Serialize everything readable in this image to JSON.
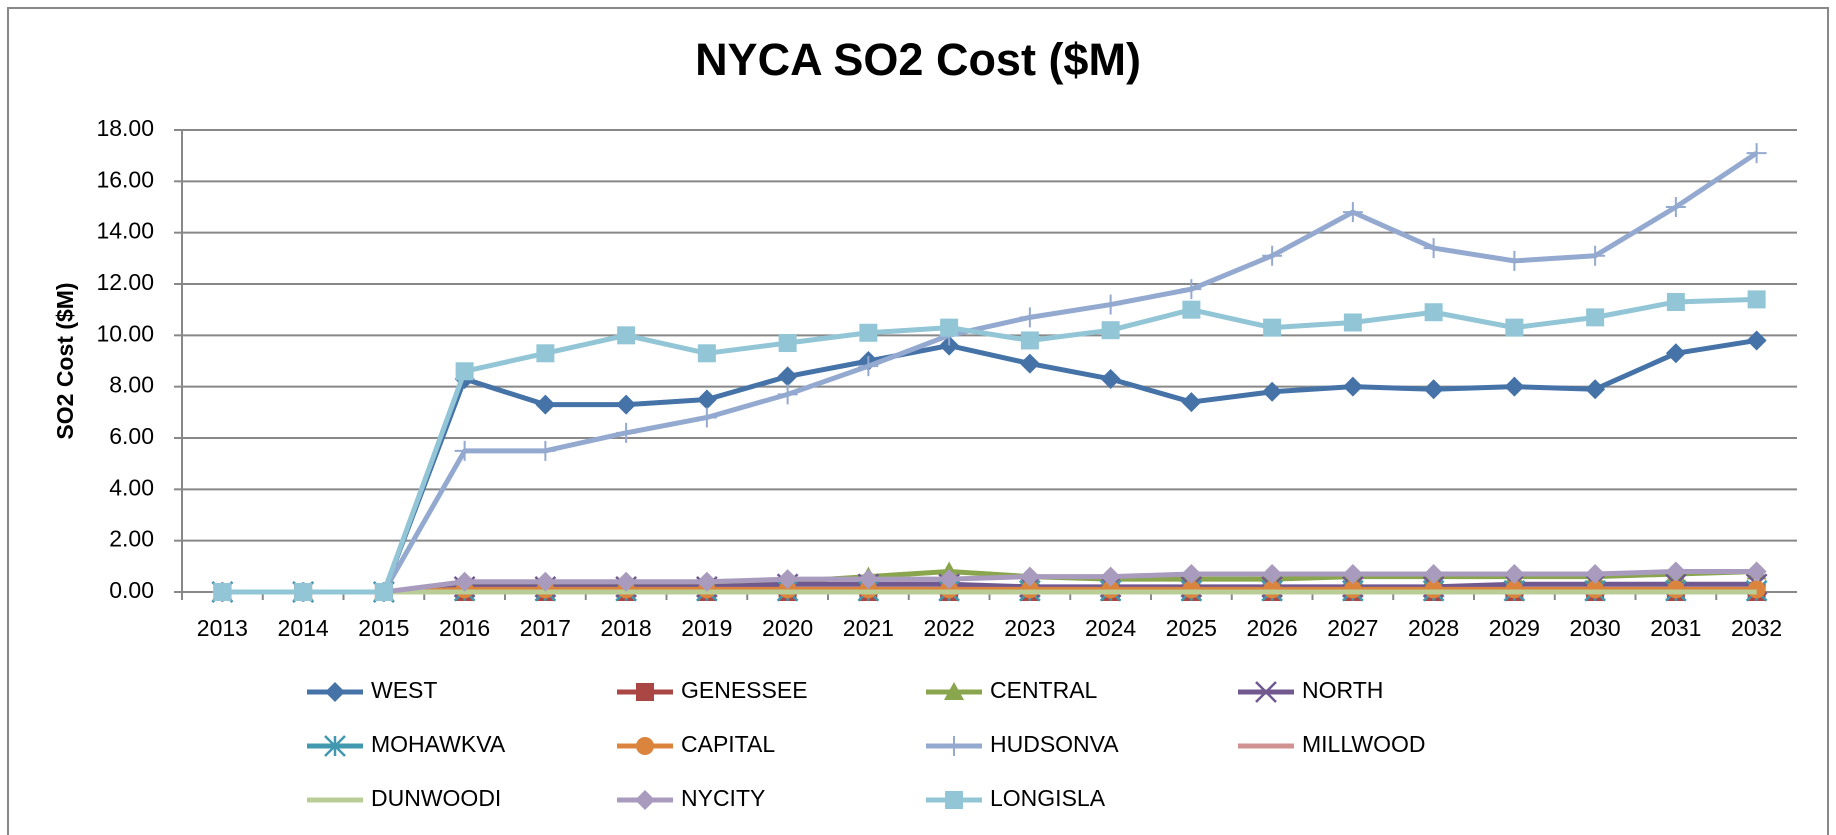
{
  "chart_data": {
    "type": "line",
    "title": "NYCA SO2 Cost ($M)",
    "y_label": "SO2 Cost ($M)",
    "categories": [
      "2013",
      "2014",
      "2015",
      "2016",
      "2017",
      "2018",
      "2019",
      "2020",
      "2021",
      "2022",
      "2023",
      "2024",
      "2025",
      "2026",
      "2027",
      "2028",
      "2029",
      "2030",
      "2031",
      "2032"
    ],
    "ylim": [
      0,
      18
    ],
    "yticks": [
      {
        "value": 0,
        "label": "0.00"
      },
      {
        "value": 2,
        "label": "2.00"
      },
      {
        "value": 4,
        "label": "4.00"
      },
      {
        "value": 6,
        "label": "6.00"
      },
      {
        "value": 8,
        "label": "8.00"
      },
      {
        "value": 10,
        "label": "10.00"
      },
      {
        "value": 12,
        "label": "12.00"
      },
      {
        "value": 14,
        "label": "14.00"
      },
      {
        "value": 16,
        "label": "16.00"
      },
      {
        "value": 18,
        "label": "18.00"
      }
    ],
    "grid": true,
    "legend": "bottom",
    "series": [
      {
        "name": "WEST",
        "color": "#4572a7",
        "marker": "diamond",
        "values": [
          0,
          0,
          0,
          8.3,
          7.3,
          7.3,
          7.5,
          8.4,
          9.0,
          9.6,
          8.9,
          8.3,
          7.4,
          7.8,
          8.0,
          7.9,
          8.0,
          7.9,
          9.3,
          9.8
        ]
      },
      {
        "name": "GENESSEE",
        "color": "#aa4643",
        "marker": "square",
        "values": [
          0,
          0,
          0,
          0,
          0,
          0,
          0,
          0,
          0,
          0,
          0,
          0,
          0,
          0,
          0,
          0,
          0,
          0,
          0,
          0
        ]
      },
      {
        "name": "CENTRAL",
        "color": "#89a54e",
        "marker": "triangle",
        "values": [
          0,
          0,
          0,
          0.3,
          0.3,
          0.3,
          0.3,
          0.4,
          0.6,
          0.8,
          0.6,
          0.5,
          0.5,
          0.5,
          0.6,
          0.6,
          0.6,
          0.6,
          0.7,
          0.8
        ]
      },
      {
        "name": "NORTH",
        "color": "#71588f",
        "marker": "x",
        "values": [
          0,
          0,
          0,
          0.2,
          0.2,
          0.2,
          0.2,
          0.3,
          0.3,
          0.3,
          0.2,
          0.2,
          0.2,
          0.2,
          0.2,
          0.2,
          0.3,
          0.3,
          0.3,
          0.3
        ]
      },
      {
        "name": "MOHAWKVA",
        "color": "#4198af",
        "marker": "asterisk",
        "values": [
          0,
          0,
          0,
          0.05,
          0.05,
          0.05,
          0.05,
          0.05,
          0.05,
          0.05,
          0.05,
          0.05,
          0.05,
          0.05,
          0.05,
          0.05,
          0.05,
          0.05,
          0.05,
          0.05
        ]
      },
      {
        "name": "CAPITAL",
        "color": "#db843d",
        "marker": "circle",
        "values": [
          0,
          0,
          0,
          0.1,
          0.1,
          0.1,
          0.1,
          0.1,
          0.1,
          0.1,
          0.1,
          0.1,
          0.1,
          0.1,
          0.1,
          0.1,
          0.1,
          0.1,
          0.1,
          0.1
        ]
      },
      {
        "name": "HUDSONVA",
        "color": "#93a9cf",
        "marker": "plus",
        "values": [
          0,
          0,
          0,
          5.5,
          5.5,
          6.2,
          6.8,
          7.7,
          8.8,
          10.0,
          10.7,
          11.2,
          11.8,
          13.1,
          14.8,
          13.4,
          12.9,
          13.1,
          15.0,
          17.1
        ]
      },
      {
        "name": "MILLWOOD",
        "color": "#d19392",
        "marker": "none",
        "values": [
          0,
          0,
          0,
          0,
          0,
          0,
          0,
          0,
          0,
          0,
          0,
          0,
          0,
          0,
          0,
          0,
          0,
          0,
          0,
          0
        ]
      },
      {
        "name": "DUNWOODI",
        "color": "#b9cd96",
        "marker": "none",
        "values": [
          0,
          0,
          0,
          0,
          0,
          0,
          0,
          0,
          0,
          0,
          0,
          0,
          0,
          0,
          0,
          0,
          0,
          0,
          0,
          0
        ]
      },
      {
        "name": "NYCITY",
        "color": "#a99bbd",
        "marker": "diamond",
        "values": [
          0,
          0,
          0,
          0.4,
          0.4,
          0.4,
          0.4,
          0.5,
          0.5,
          0.5,
          0.6,
          0.6,
          0.7,
          0.7,
          0.7,
          0.7,
          0.7,
          0.7,
          0.8,
          0.8
        ]
      },
      {
        "name": "LONGISLA",
        "color": "#92c5d6",
        "marker": "square",
        "values": [
          0,
          0,
          0,
          8.6,
          9.3,
          10.0,
          9.3,
          9.7,
          10.1,
          10.3,
          9.8,
          10.2,
          11.0,
          10.3,
          10.5,
          10.9,
          10.3,
          10.7,
          11.3,
          11.4
        ]
      }
    ]
  }
}
